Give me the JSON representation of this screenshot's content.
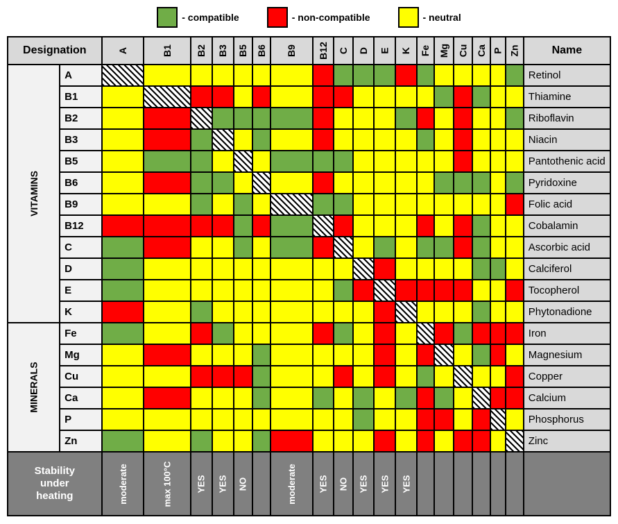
{
  "legend": {
    "items": [
      {
        "label": "- compatible",
        "color": "#70ad47"
      },
      {
        "label": "- non-compatible",
        "color": "#ff0000"
      },
      {
        "label": "- neutral",
        "color": "#ffff00"
      }
    ]
  },
  "colors": {
    "g": "#70ad47",
    "r": "#ff0000",
    "y": "#ffff00"
  },
  "headers": {
    "designation": "Designation",
    "name": "Name",
    "stability": "Stability under heating"
  },
  "columns": [
    "A",
    "B1",
    "B2",
    "B3",
    "B5",
    "B6",
    "B9",
    "B12",
    "C",
    "D",
    "E",
    "K",
    "Fe",
    "Mg",
    "Cu",
    "Ca",
    "P",
    "Zn"
  ],
  "groups": [
    {
      "label": "VITAMINS",
      "rows": 12
    },
    {
      "label": "MINERALS",
      "rows": 6
    }
  ],
  "rows": [
    {
      "code": "A",
      "name": "Retinol",
      "cells": [
        "d",
        "y",
        "y",
        "y",
        "y",
        "y",
        "y",
        "r",
        "g",
        "g",
        "g",
        "r",
        "g",
        "y",
        "y",
        "y",
        "y",
        "g"
      ]
    },
    {
      "code": "B1",
      "name": "Thiamine",
      "cells": [
        "y",
        "d",
        "r",
        "r",
        "y",
        "r",
        "y",
        "r",
        "r",
        "y",
        "y",
        "y",
        "y",
        "g",
        "r",
        "g",
        "y",
        "y"
      ]
    },
    {
      "code": "B2",
      "name": "Riboflavin",
      "cells": [
        "y",
        "r",
        "d",
        "g",
        "g",
        "g",
        "g",
        "r",
        "y",
        "y",
        "y",
        "g",
        "r",
        "y",
        "r",
        "y",
        "y",
        "g"
      ]
    },
    {
      "code": "B3",
      "name": "Niacin",
      "cells": [
        "y",
        "r",
        "g",
        "d",
        "y",
        "g",
        "y",
        "r",
        "y",
        "y",
        "y",
        "y",
        "g",
        "y",
        "r",
        "y",
        "y",
        "y"
      ]
    },
    {
      "code": "B5",
      "name": "Pantothenic acid",
      "cells": [
        "y",
        "g",
        "g",
        "y",
        "d",
        "y",
        "g",
        "g",
        "g",
        "y",
        "y",
        "y",
        "y",
        "y",
        "r",
        "y",
        "y",
        "y"
      ]
    },
    {
      "code": "B6",
      "name": "Pyridoxine",
      "cells": [
        "y",
        "r",
        "g",
        "g",
        "y",
        "d",
        "y",
        "r",
        "y",
        "y",
        "y",
        "y",
        "y",
        "g",
        "g",
        "g",
        "y",
        "g"
      ]
    },
    {
      "code": "B9",
      "name": "Folic acid",
      "cells": [
        "y",
        "y",
        "g",
        "y",
        "g",
        "y",
        "d",
        "g",
        "g",
        "y",
        "y",
        "y",
        "y",
        "y",
        "y",
        "y",
        "y",
        "r"
      ]
    },
    {
      "code": "B12",
      "name": "Cobalamin",
      "cells": [
        "r",
        "r",
        "r",
        "r",
        "g",
        "r",
        "g",
        "d",
        "r",
        "y",
        "y",
        "y",
        "r",
        "y",
        "r",
        "g",
        "y",
        "y"
      ]
    },
    {
      "code": "C",
      "name": "Ascorbic acid",
      "cells": [
        "g",
        "r",
        "y",
        "y",
        "g",
        "y",
        "g",
        "r",
        "d",
        "y",
        "g",
        "y",
        "g",
        "g",
        "r",
        "g",
        "y",
        "y"
      ]
    },
    {
      "code": "D",
      "name": "Calciferol",
      "cells": [
        "g",
        "y",
        "y",
        "y",
        "y",
        "y",
        "y",
        "y",
        "y",
        "d",
        "r",
        "y",
        "y",
        "y",
        "y",
        "g",
        "g",
        "y"
      ]
    },
    {
      "code": "E",
      "name": "Tocopherol",
      "cells": [
        "g",
        "y",
        "y",
        "y",
        "y",
        "y",
        "y",
        "y",
        "g",
        "r",
        "d",
        "r",
        "r",
        "r",
        "r",
        "y",
        "y",
        "r"
      ]
    },
    {
      "code": "K",
      "name": "Phytonadione",
      "cells": [
        "r",
        "y",
        "g",
        "y",
        "y",
        "y",
        "y",
        "y",
        "y",
        "y",
        "r",
        "d",
        "y",
        "y",
        "y",
        "g",
        "y",
        "y"
      ]
    },
    {
      "code": "Fe",
      "name": "Iron",
      "cells": [
        "g",
        "y",
        "r",
        "g",
        "y",
        "y",
        "y",
        "r",
        "g",
        "y",
        "r",
        "y",
        "d",
        "r",
        "g",
        "r",
        "r",
        "r"
      ]
    },
    {
      "code": "Mg",
      "name": "Magnesium",
      "cells": [
        "y",
        "r",
        "y",
        "y",
        "y",
        "g",
        "y",
        "y",
        "y",
        "y",
        "r",
        "y",
        "r",
        "d",
        "y",
        "g",
        "r",
        "y"
      ]
    },
    {
      "code": "Cu",
      "name": "Copper",
      "cells": [
        "y",
        "y",
        "r",
        "r",
        "r",
        "g",
        "y",
        "y",
        "r",
        "y",
        "r",
        "y",
        "g",
        "y",
        "d",
        "y",
        "y",
        "r"
      ]
    },
    {
      "code": "Ca",
      "name": "Calcium",
      "cells": [
        "y",
        "r",
        "y",
        "y",
        "y",
        "g",
        "y",
        "g",
        "y",
        "g",
        "y",
        "g",
        "r",
        "g",
        "y",
        "d",
        "r",
        "r"
      ]
    },
    {
      "code": "P",
      "name": "Phosphorus",
      "cells": [
        "y",
        "y",
        "y",
        "y",
        "y",
        "y",
        "y",
        "y",
        "y",
        "g",
        "y",
        "y",
        "r",
        "r",
        "y",
        "r",
        "d",
        "y"
      ]
    },
    {
      "code": "Zn",
      "name": "Zinc",
      "cells": [
        "g",
        "y",
        "g",
        "y",
        "y",
        "g",
        "r",
        "y",
        "y",
        "y",
        "r",
        "y",
        "r",
        "y",
        "r",
        "r",
        "y",
        "d"
      ]
    }
  ],
  "stability": [
    "moderate",
    "max 100°C",
    "YES",
    "YES",
    "NO",
    "",
    "moderate",
    "YES",
    "NO",
    "YES",
    "YES",
    "YES",
    "",
    "",
    "",
    "",
    "",
    ""
  ]
}
